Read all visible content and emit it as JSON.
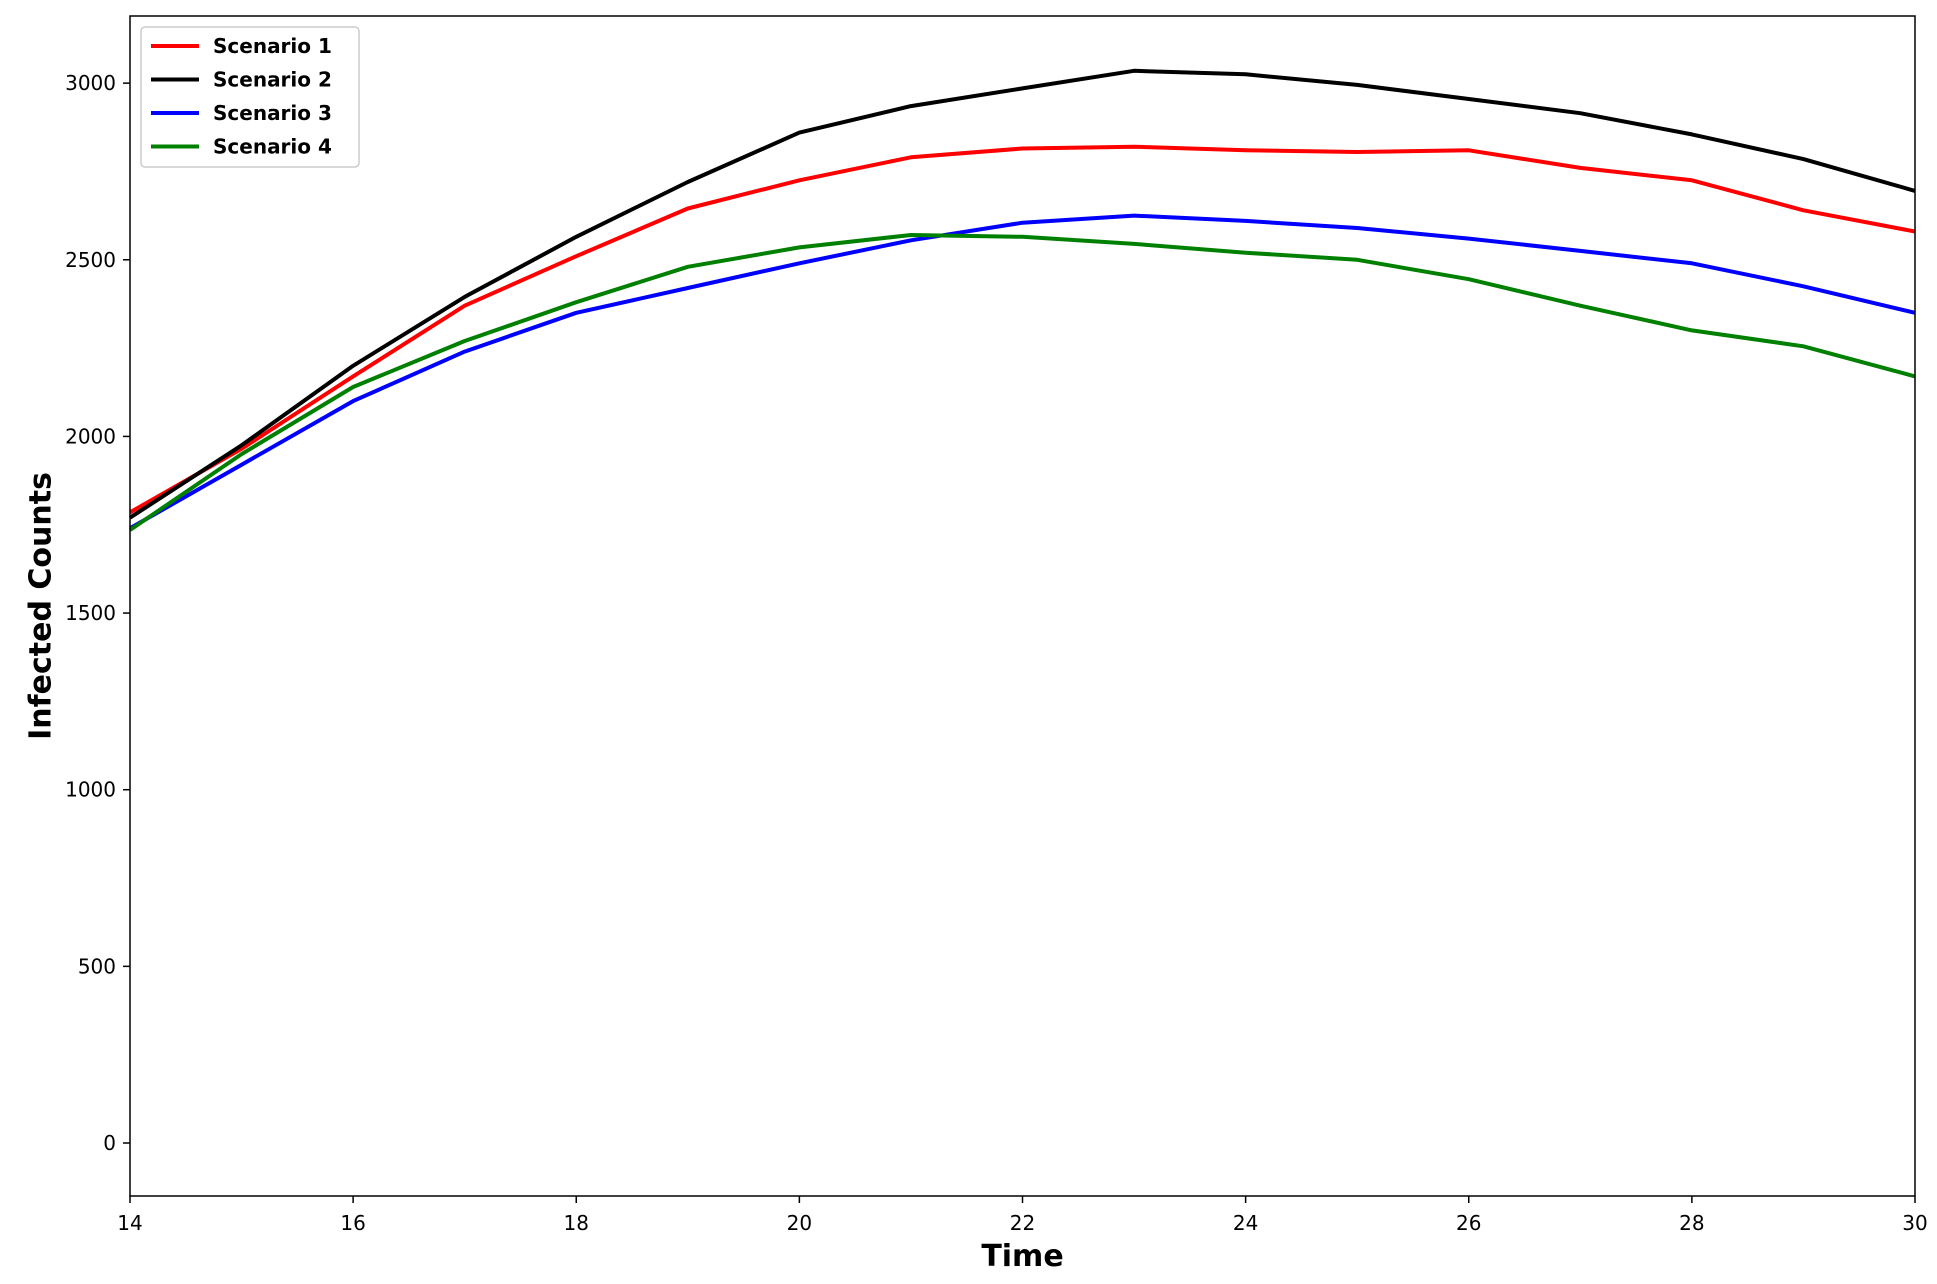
{
  "chart_data": {
    "type": "line",
    "title": "",
    "xlabel": "Time",
    "ylabel": "Infected Counts",
    "xlim": [
      14,
      30
    ],
    "ylim": [
      -150,
      3190
    ],
    "x_ticks": [
      14,
      16,
      18,
      20,
      22,
      24,
      26,
      28,
      30
    ],
    "y_ticks": [
      0,
      500,
      1000,
      1500,
      2000,
      2500,
      3000
    ],
    "grid": false,
    "legend_position": "top-left",
    "x": [
      14,
      15,
      16,
      17,
      18,
      19,
      20,
      21,
      22,
      23,
      24,
      25,
      26,
      27,
      28,
      29,
      30
    ],
    "series": [
      {
        "name": "Scenario 1",
        "color": "#ff0000",
        "values": [
          1785,
          1965,
          2170,
          2370,
          2510,
          2645,
          2725,
          2790,
          2815,
          2820,
          2810,
          2805,
          2810,
          2760,
          2725,
          2640,
          2580
        ]
      },
      {
        "name": "Scenario 2",
        "color": "#000000",
        "values": [
          1770,
          1975,
          2200,
          2395,
          2565,
          2720,
          2860,
          2935,
          2985,
          3035,
          3025,
          2995,
          2955,
          2915,
          2855,
          2785,
          2695
        ]
      },
      {
        "name": "Scenario 3",
        "color": "#0000ff",
        "values": [
          1740,
          1920,
          2100,
          2240,
          2350,
          2420,
          2490,
          2555,
          2605,
          2625,
          2610,
          2590,
          2560,
          2525,
          2490,
          2425,
          2350
        ]
      },
      {
        "name": "Scenario 4",
        "color": "#008000",
        "values": [
          1735,
          1950,
          2140,
          2270,
          2380,
          2480,
          2535,
          2570,
          2565,
          2545,
          2520,
          2500,
          2445,
          2370,
          2300,
          2255,
          2170
        ]
      }
    ]
  }
}
